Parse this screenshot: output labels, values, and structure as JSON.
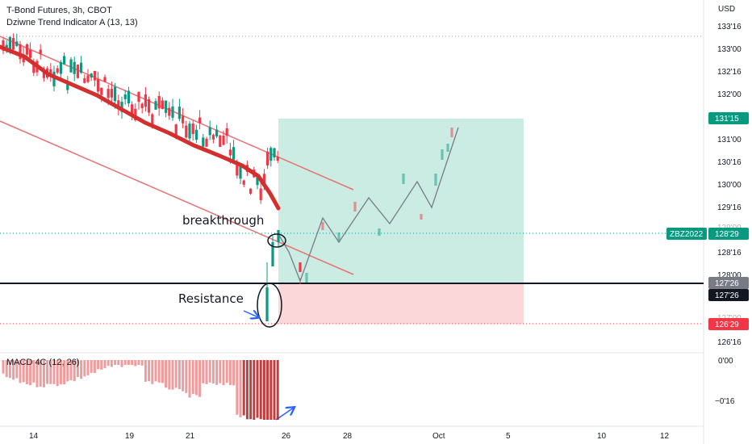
{
  "header": {
    "symbol_title": "T-Bond Futures, 3h, CBOT",
    "indicator_title": "Dziwne Trend Indicator A (13, 13)",
    "currency": "USD"
  },
  "price_axis": {
    "labels": [
      "133'16",
      "133'00",
      "132'16",
      "132'00",
      "131'00",
      "130'16",
      "130'00",
      "129'16",
      "129'00",
      "128'16",
      "128'00",
      "127'00",
      "126'16"
    ]
  },
  "price_tags": [
    {
      "text": "131'15",
      "color": "#089981",
      "text_color": "#ffffff"
    },
    {
      "text": "128'29",
      "color": "#089981",
      "text_color": "#ffffff",
      "symbol": "ZBZ2022"
    },
    {
      "text": "127'26",
      "color": "#787b86",
      "text_color": "#ffffff"
    },
    {
      "text": "127'26",
      "color": "#131722",
      "text_color": "#ffffff"
    },
    {
      "text": "126'29",
      "color": "#f23645",
      "text_color": "#ffffff"
    }
  ],
  "macd": {
    "title": "MACD 4C (12, 26)",
    "axis_labels": [
      "0'00",
      "−0'16"
    ]
  },
  "time_axis": {
    "labels": [
      "14",
      "19",
      "21",
      "26",
      "28",
      "Oct",
      "5",
      "10",
      "12"
    ]
  },
  "annotations": {
    "breakthrough": "breakthrough",
    "resistance": "Resistance"
  },
  "colors": {
    "up_candle": "#089981",
    "down_candle": "#f23645",
    "trend_line": "#e57373",
    "indicator": "#d32f2f",
    "target_zone": "#b9e5d8",
    "stop_zone": "#fbd0d4",
    "resistance_line": "#131722",
    "forecast_path": "#787b86",
    "arrow": "#2962ff"
  },
  "chart_data": {
    "type": "candlestick",
    "title": "T-Bond Futures, 3h, CBOT",
    "price_scale_ticks": [
      "133'16",
      "133'00",
      "132'16",
      "132'00",
      "131'16",
      "131'00",
      "130'16",
      "130'00",
      "129'16",
      "129'00",
      "128'16",
      "128'00",
      "127'16",
      "127'00",
      "126'16"
    ],
    "x_ticks": [
      "14",
      "19",
      "21",
      "26",
      "28",
      "Oct",
      "5",
      "10",
      "12"
    ],
    "levels": {
      "resistance": "127'26",
      "last_price": "128'29",
      "target": "131'15",
      "stop": "126'29"
    },
    "series": [
      {
        "name": "ZBZ2022",
        "style": "candlestick",
        "approx_range": [
          "127'16",
          "133'16"
        ]
      },
      {
        "name": "Dziwne Trend Indicator A (13, 13)",
        "style": "line"
      },
      {
        "name": "MACD 4C (12, 26)",
        "style": "histogram",
        "range": [
          "−0'20",
          "0'00"
        ]
      }
    ],
    "legend": "top-left",
    "grid": false
  }
}
